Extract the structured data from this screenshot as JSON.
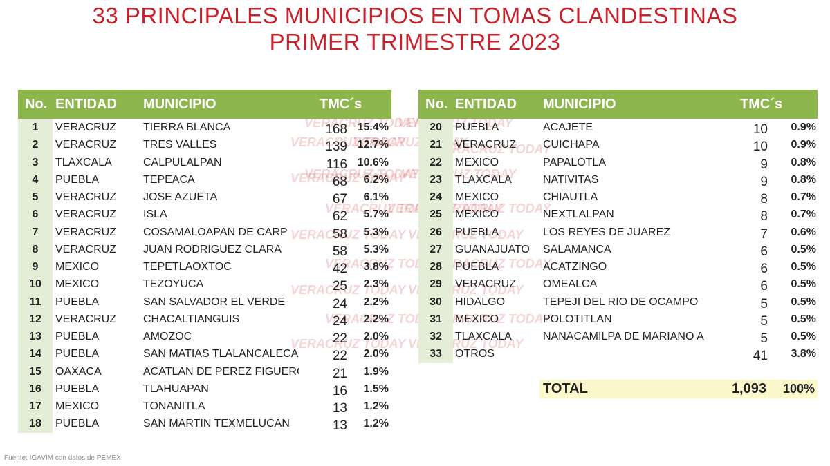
{
  "title": [
    "33 PRINCIPALES MUNICIPIOS EN TOMAS CLANDESTINAS",
    "PRIMER TRIMESTRE 2023"
  ],
  "watermark": "VERACRUZ TODAY",
  "tables": [
    {
      "headers": [
        "No.",
        "ENTIDAD",
        "MUNICIPIO",
        "TMC´s"
      ],
      "rows": [
        [
          "1",
          "VERACRUZ",
          "TIERRA BLANCA",
          "168",
          "15.4%"
        ],
        [
          "2",
          "VERACRUZ",
          "TRES VALLES",
          "139",
          "12.7%"
        ],
        [
          "3",
          "TLAXCALA",
          "CALPULALPAN",
          "116",
          "10.6%"
        ],
        [
          "4",
          "PUEBLA",
          "TEPEACA",
          "68",
          "6.2%"
        ],
        [
          "5",
          "VERACRUZ",
          "JOSE AZUETA",
          "67",
          "6.1%"
        ],
        [
          "6",
          "VERACRUZ",
          "ISLA",
          "62",
          "5.7%"
        ],
        [
          "7",
          "VERACRUZ",
          "COSAMALOAPAN DE CARP",
          "58",
          "5.3%"
        ],
        [
          "8",
          "VERACRUZ",
          "JUAN RODRIGUEZ CLARA",
          "58",
          "5.3%"
        ],
        [
          "9",
          "MEXICO",
          "TEPETLAOXTOC",
          "42",
          "3.8%"
        ],
        [
          "10",
          "MEXICO",
          "TEZOYUCA",
          "25",
          "2.3%"
        ],
        [
          "11",
          "PUEBLA",
          "SAN SALVADOR EL VERDE",
          "24",
          "2.2%"
        ],
        [
          "12",
          "VERACRUZ",
          "CHACALTIANGUIS",
          "24",
          "2.2%"
        ],
        [
          "13",
          "PUEBLA",
          "AMOZOC",
          "22",
          "2.0%"
        ],
        [
          "14",
          "PUEBLA",
          "SAN MATIAS TLALANCALECA",
          "22",
          "2.0%"
        ],
        [
          "15",
          "OAXACA",
          "ACATLAN DE PEREZ FIGUERO",
          "21",
          "1.9%"
        ],
        [
          "16",
          "PUEBLA",
          "TLAHUAPAN",
          "16",
          "1.5%"
        ],
        [
          "17",
          "MEXICO",
          "TONANITLA",
          "13",
          "1.2%"
        ],
        [
          "18",
          "PUEBLA",
          "SAN MARTIN TEXMELUCAN",
          "13",
          "1.2%"
        ]
      ]
    },
    {
      "headers": [
        "No.",
        "ENTIDAD",
        "MUNICIPIO",
        "TMC´s"
      ],
      "rows": [
        [
          "20",
          "PUEBLA",
          "ACAJETE",
          "10",
          "0.9%"
        ],
        [
          "21",
          "VERACRUZ",
          "CUICHAPA",
          "10",
          "0.9%"
        ],
        [
          "22",
          "MEXICO",
          "PAPALOTLA",
          "9",
          "0.8%"
        ],
        [
          "23",
          "TLAXCALA",
          "NATIVITAS",
          "9",
          "0.8%"
        ],
        [
          "24",
          "MEXICO",
          "CHIAUTLA",
          "8",
          "0.7%"
        ],
        [
          "25",
          "MEXICO",
          "NEXTLALPAN",
          "8",
          "0.7%"
        ],
        [
          "26",
          "PUEBLA",
          "LOS REYES DE JUAREZ",
          "7",
          "0.6%"
        ],
        [
          "27",
          "GUANAJUATO",
          "SALAMANCA",
          "6",
          "0.5%"
        ],
        [
          "28",
          "PUEBLA",
          "ACATZINGO",
          "6",
          "0.5%"
        ],
        [
          "29",
          "VERACRUZ",
          "OMEALCA",
          "6",
          "0.5%"
        ],
        [
          "30",
          "HIDALGO",
          "TEPEJI DEL RIO DE OCAMPO",
          "5",
          "0.5%"
        ],
        [
          "31",
          "MEXICO",
          "POLOTITLAN",
          "5",
          "0.5%"
        ],
        [
          "32",
          "TLAXCALA",
          "NANACAMILPA DE MARIANO A",
          "5",
          "0.5%"
        ],
        [
          "33",
          "OTROS",
          "",
          "41",
          "3.8%"
        ]
      ]
    }
  ],
  "total": {
    "label": "TOTAL",
    "value": "1,093",
    "percent": "100%"
  },
  "footer": "Fuente: IGAVIM con datos de PEMEX"
}
